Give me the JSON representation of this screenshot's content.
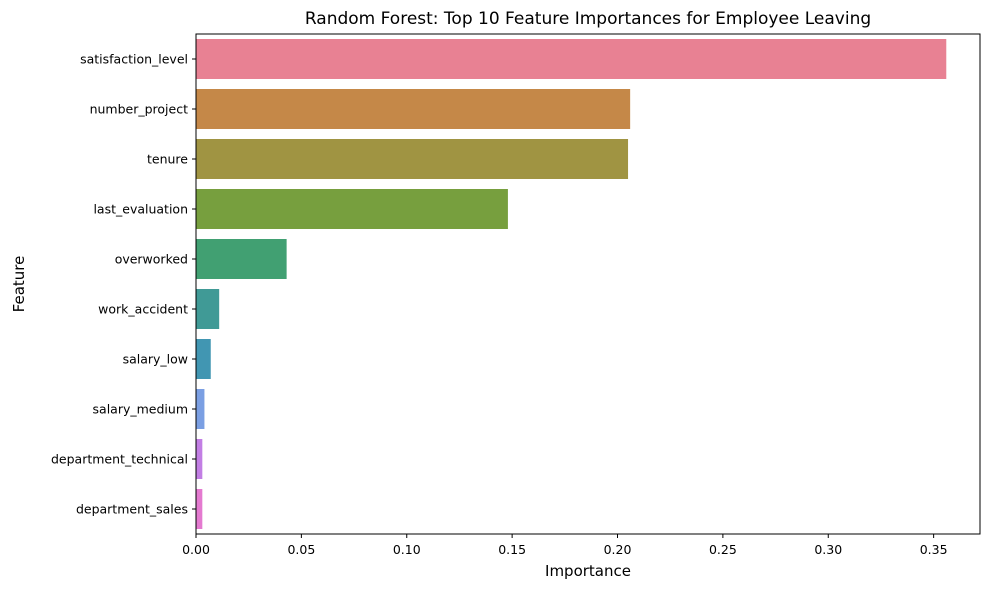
{
  "chart_data": {
    "type": "bar",
    "orientation": "horizontal",
    "title": "Random Forest: Top 10 Feature Importances for Employee Leaving",
    "xlabel": "Importance",
    "ylabel": "Feature",
    "xlim": [
      0,
      0.372
    ],
    "x_ticks": [
      0.0,
      0.05,
      0.1,
      0.15,
      0.2,
      0.25,
      0.3,
      0.35
    ],
    "x_tick_labels": [
      "0.00",
      "0.05",
      "0.10",
      "0.15",
      "0.20",
      "0.25",
      "0.30",
      "0.35"
    ],
    "categories": [
      "satisfaction_level",
      "number_project",
      "tenure",
      "last_evaluation",
      "overworked",
      "work_accident",
      "salary_low",
      "salary_medium",
      "department_technical",
      "department_sales"
    ],
    "values": [
      0.356,
      0.206,
      0.205,
      0.148,
      0.043,
      0.011,
      0.007,
      0.004,
      0.003,
      0.003
    ],
    "colors": [
      "#e88193",
      "#c58848",
      "#a09442",
      "#779f3e",
      "#41a072",
      "#409a96",
      "#4196b2",
      "#7b9fe3",
      "#c27ee4",
      "#e47ad0"
    ],
    "grid": false,
    "legend": "none"
  }
}
